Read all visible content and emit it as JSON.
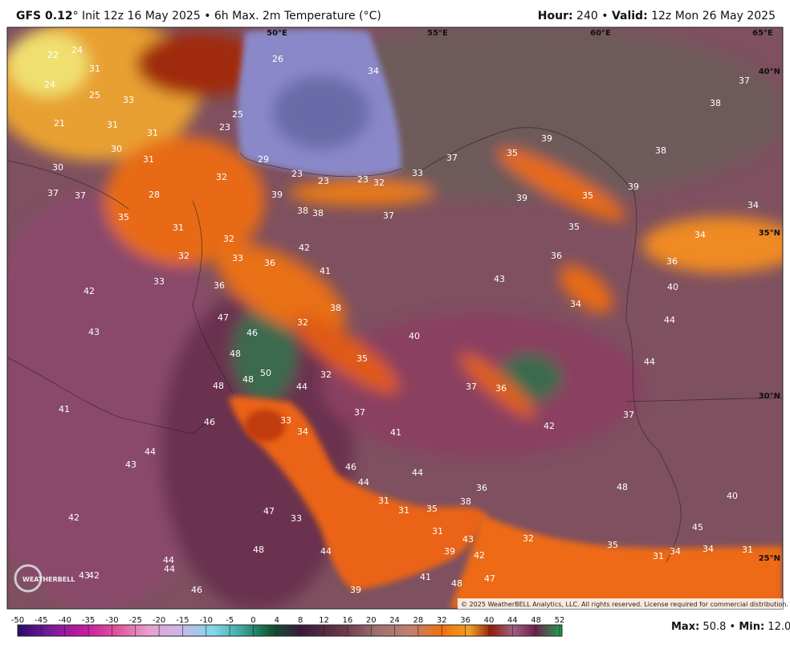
{
  "header": {
    "model": "GFS 0.12",
    "title_rest": "° Init 12z 16 May 2025 • 6h Max. 2m Temperature (°C)",
    "hour_label": "Hour:",
    "hour_value": " 240 • ",
    "valid_label": "Valid:",
    "valid_value": " 12z Mon 26 May 2025"
  },
  "map": {
    "longitudes": [
      "50°E",
      "55°E",
      "60°E",
      "65°E"
    ],
    "latitudes": [
      "40°N",
      "35°N",
      "30°N",
      "25°N"
    ],
    "labels": [
      22,
      24,
      31,
      24,
      25,
      33,
      21,
      31,
      31,
      30,
      31,
      30,
      37,
      37,
      28,
      35,
      31,
      32,
      29,
      23,
      23,
      23,
      32,
      33,
      39,
      38,
      38,
      37,
      34,
      26,
      23,
      25,
      37,
      35,
      39,
      38,
      38,
      37,
      39,
      39,
      35,
      35,
      34,
      34,
      36,
      36,
      40,
      34,
      44,
      44,
      43,
      42,
      41,
      36,
      32,
      32,
      33,
      33,
      36,
      42,
      43,
      47,
      46,
      38,
      32,
      40,
      35,
      48,
      48,
      50,
      44,
      32,
      48,
      37,
      36,
      37,
      42,
      37,
      41,
      46,
      33,
      34,
      41,
      44,
      43,
      46,
      44,
      44,
      48,
      40,
      36,
      38,
      31,
      31,
      35,
      47,
      33,
      42,
      31,
      32,
      43,
      42,
      35,
      31,
      34,
      34,
      31,
      45,
      48,
      44,
      39,
      44,
      44,
      43,
      42,
      46,
      39,
      48,
      47,
      41
    ],
    "copyright": "© 2025 WeatherBELL Analytics, LLC. All rights reserved. License required for commercial distribution.",
    "watermark": "WEATHERBELL"
  },
  "colorbar": {
    "ticks": [
      -50,
      -45,
      -40,
      -35,
      -30,
      -25,
      -20,
      -15,
      -10,
      -5,
      0,
      4,
      8,
      12,
      16,
      20,
      24,
      28,
      32,
      36,
      40,
      44,
      48,
      52
    ]
  },
  "footer": {
    "max_label": "Max:",
    "max_value": " 50.8 • ",
    "min_label": "Min:",
    "min_value": " 12.0"
  }
}
